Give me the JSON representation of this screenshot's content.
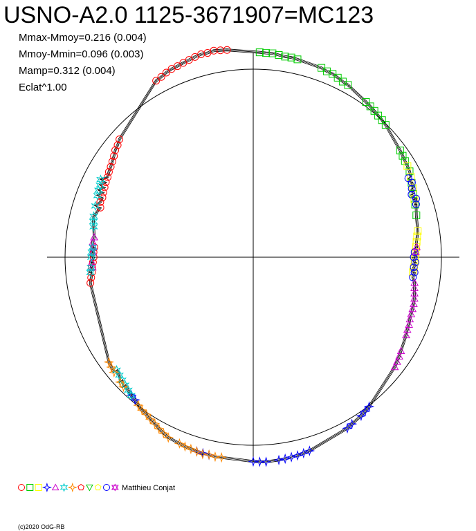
{
  "title": "USNO-A2.0 1125-3671907=MC123",
  "stats": [
    "Mmax-Mmoy=0.216 (0.004)",
    "Mmoy-Mmin=0.096 (0.003)",
    "Mamp=0.312 (0.004)",
    "Eclat^1.00"
  ],
  "observer": "Matthieu Conjat",
  "credit": "(c)2020 OdG-RB",
  "chart_data": {
    "type": "scatter",
    "coordinate_system": "polar",
    "angle_unit": "phase (0-1), 0 at top, increasing clockwise",
    "reference_circle_radius": 1.0,
    "grid": false,
    "series": [
      {
        "marker": "circle",
        "color": "#ff0000",
        "points": [
          [
            0.92,
            1.071
          ],
          [
            0.925,
            1.076
          ],
          [
            0.93,
            1.085
          ],
          [
            0.935,
            1.091
          ],
          [
            0.94,
            1.093
          ],
          [
            0.945,
            1.098
          ],
          [
            0.95,
            1.103
          ],
          [
            0.955,
            1.109
          ],
          [
            0.96,
            1.114
          ],
          [
            0.965,
            1.113
          ],
          [
            0.97,
            1.118
          ],
          [
            0.975,
            1.114
          ],
          [
            0.98,
            1.111
          ],
          [
            0.8,
            0.854
          ],
          [
            0.805,
            0.864
          ],
          [
            0.81,
            0.862
          ],
          [
            0.815,
            0.868
          ],
          [
            0.82,
            0.873
          ],
          [
            0.825,
            0.879
          ],
          [
            0.83,
            0.883
          ],
          [
            0.835,
            0.891
          ],
          [
            0.84,
            0.897
          ],
          [
            0.845,
            0.905
          ],
          [
            0.85,
            0.915
          ],
          [
            0.855,
            0.928
          ],
          [
            0.86,
            0.935
          ],
          [
            0.865,
            0.948
          ],
          [
            0.725,
            0.876
          ],
          [
            0.73,
            0.868
          ],
          [
            0.735,
            0.861
          ],
          [
            0.74,
            0.858
          ],
          [
            0.745,
            0.852
          ],
          [
            0.75,
            0.848
          ],
          [
            0.755,
            0.849
          ],
          [
            0.76,
            0.846
          ]
        ]
      },
      {
        "marker": "square",
        "color": "#00cc00",
        "points": [
          [
            0.005,
            1.09
          ],
          [
            0.01,
            1.088
          ],
          [
            0.015,
            1.089
          ],
          [
            0.02,
            1.084
          ],
          [
            0.025,
            1.08
          ],
          [
            0.03,
            1.081
          ],
          [
            0.035,
            1.078
          ],
          [
            0.055,
            1.07
          ],
          [
            0.06,
            1.063
          ],
          [
            0.065,
            1.062
          ],
          [
            0.07,
            1.055
          ],
          [
            0.075,
            1.048
          ],
          [
            0.08,
            1.045
          ],
          [
            0.1,
            1.02
          ],
          [
            0.105,
            1.015
          ],
          [
            0.11,
            1.01
          ],
          [
            0.115,
            1.004
          ],
          [
            0.12,
            1.0
          ],
          [
            0.125,
            0.995
          ],
          [
            0.15,
            0.965
          ],
          [
            0.155,
            0.96
          ],
          [
            0.16,
            0.955
          ],
          [
            0.17,
            0.948
          ],
          [
            0.18,
            0.93
          ],
          [
            0.19,
            0.915
          ],
          [
            0.2,
            0.905
          ],
          [
            0.21,
            0.895
          ]
        ]
      },
      {
        "marker": "square",
        "color": "#ffff00",
        "points": [
          [
            0.165,
            0.952
          ],
          [
            0.175,
            0.94
          ],
          [
            0.185,
            0.925
          ],
          [
            0.195,
            0.91
          ],
          [
            0.225,
            0.885
          ],
          [
            0.23,
            0.878
          ],
          [
            0.235,
            0.872
          ],
          [
            0.24,
            0.868
          ],
          [
            0.245,
            0.863
          ],
          [
            0.25,
            0.86
          ],
          [
            0.255,
            0.858
          ],
          [
            0.26,
            0.856
          ],
          [
            0.265,
            0.852
          ]
        ]
      },
      {
        "marker": "circle",
        "color": "#0000ff",
        "points": [
          [
            0.175,
            0.925
          ],
          [
            0.18,
            0.932
          ],
          [
            0.185,
            0.918
          ],
          [
            0.19,
            0.905
          ],
          [
            0.195,
            0.92
          ],
          [
            0.2,
            0.91
          ],
          [
            0.245,
            0.858
          ],
          [
            0.25,
            0.853
          ],
          [
            0.255,
            0.862
          ],
          [
            0.26,
            0.855
          ],
          [
            0.265,
            0.861
          ],
          [
            0.27,
            0.855
          ]
        ]
      },
      {
        "marker": "triangle-up",
        "color": "#cc00cc",
        "points": [
          [
            0.24,
            0.87
          ],
          [
            0.245,
            0.864
          ],
          [
            0.275,
            0.868
          ],
          [
            0.28,
            0.872
          ],
          [
            0.285,
            0.878
          ],
          [
            0.29,
            0.884
          ],
          [
            0.295,
            0.888
          ],
          [
            0.3,
            0.89
          ],
          [
            0.305,
            0.892
          ],
          [
            0.31,
            0.895
          ],
          [
            0.315,
            0.902
          ],
          [
            0.32,
            0.905
          ],
          [
            0.325,
            0.912
          ],
          [
            0.34,
            0.93
          ],
          [
            0.345,
            0.938
          ],
          [
            0.35,
            0.945
          ],
          [
            0.355,
            0.952
          ],
          [
            0.74,
            0.855
          ],
          [
            0.745,
            0.858
          ],
          [
            0.755,
            0.852
          ],
          [
            0.76,
            0.85
          ],
          [
            0.765,
            0.856
          ],
          [
            0.77,
            0.852
          ]
        ]
      },
      {
        "marker": "star4",
        "color": "#0000ff",
        "points": [
          [
            0.395,
            1.005
          ],
          [
            0.4,
            1.012
          ],
          [
            0.405,
            1.02
          ],
          [
            0.415,
            1.03
          ],
          [
            0.42,
            1.038
          ],
          [
            0.455,
            1.072
          ],
          [
            0.46,
            1.076
          ],
          [
            0.465,
            1.08
          ],
          [
            0.47,
            1.082
          ],
          [
            0.475,
            1.085
          ],
          [
            0.48,
            1.087
          ],
          [
            0.49,
            1.09
          ],
          [
            0.495,
            1.088
          ],
          [
            0.5,
            1.086
          ],
          [
            0.535,
            1.077
          ],
          [
            0.54,
            1.076
          ],
          [
            0.545,
            1.075
          ],
          [
            0.61,
            0.985
          ],
          [
            0.615,
            0.978
          ]
        ]
      },
      {
        "marker": "star6",
        "color": "#00cccc",
        "points": [
          [
            0.615,
            0.98
          ],
          [
            0.62,
            0.97
          ],
          [
            0.625,
            0.962
          ],
          [
            0.63,
            0.955
          ],
          [
            0.635,
            0.948
          ],
          [
            0.64,
            0.942
          ],
          [
            0.735,
            0.869
          ],
          [
            0.74,
            0.864
          ],
          [
            0.75,
            0.86
          ],
          [
            0.755,
            0.858
          ],
          [
            0.76,
            0.854
          ],
          [
            0.78,
            0.863
          ],
          [
            0.785,
            0.87
          ],
          [
            0.79,
            0.875
          ],
          [
            0.8,
            0.882
          ],
          [
            0.81,
            0.89
          ],
          [
            0.815,
            0.896
          ],
          [
            0.82,
            0.9
          ],
          [
            0.825,
            0.91
          ]
        ]
      },
      {
        "marker": "star4",
        "color": "#ff8800",
        "points": [
          [
            0.525,
            1.078
          ],
          [
            0.53,
            1.08
          ],
          [
            0.535,
            1.076
          ],
          [
            0.54,
            1.081
          ],
          [
            0.545,
            1.076
          ],
          [
            0.55,
            1.072
          ],
          [
            0.555,
            1.07
          ],
          [
            0.56,
            1.065
          ],
          [
            0.57,
            1.06
          ],
          [
            0.575,
            1.05
          ],
          [
            0.58,
            1.04
          ],
          [
            0.585,
            1.028
          ],
          [
            0.59,
            1.02
          ],
          [
            0.595,
            1.01
          ],
          [
            0.6,
            1.005
          ],
          [
            0.605,
            0.996
          ],
          [
            0.625,
            0.975
          ],
          [
            0.63,
            0.97
          ],
          [
            0.64,
            0.96
          ],
          [
            0.645,
            0.954
          ],
          [
            0.65,
            0.948
          ]
        ]
      }
    ]
  }
}
